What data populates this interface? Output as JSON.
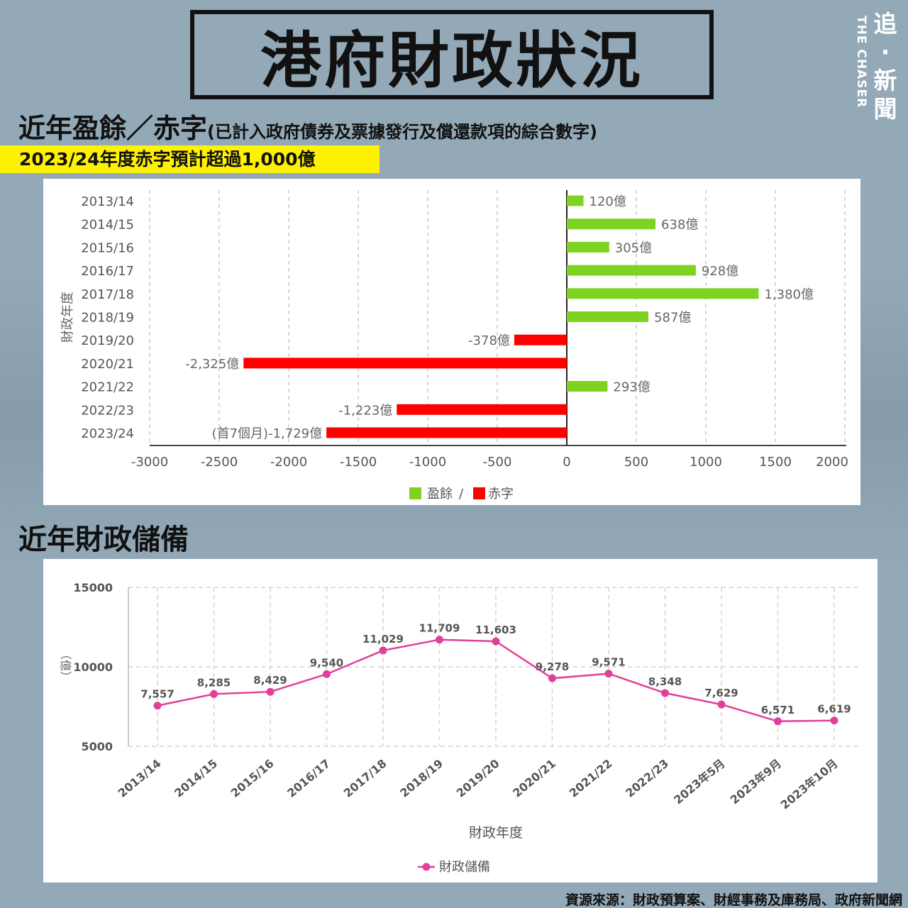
{
  "header": {
    "title": "港府財政狀況",
    "logo_cn": "追·新聞",
    "logo_en": "THE CHASER"
  },
  "section1": {
    "title": "近年盈餘／赤字",
    "subtitle": "(已計入政府債券及票據發行及償還款項的綜合數字)",
    "highlight": "2023/24年度赤字預計超過1,000億"
  },
  "section2": {
    "title": "近年財政儲備"
  },
  "footer": {
    "source": "資源來源：財政預算案、財經事務及庫務局、政府新聞網"
  },
  "colors": {
    "surplus": "#7ed321",
    "deficit": "#ff0000",
    "reserve_line": "#e0409a",
    "background": "#93a9b7",
    "highlight": "#fff200"
  },
  "chart_data": [
    {
      "type": "bar",
      "orientation": "horizontal",
      "ylabel": "財政年度",
      "categories": [
        "2013/14",
        "2014/15",
        "2015/16",
        "2016/17",
        "2017/18",
        "2018/19",
        "2019/20",
        "2020/21",
        "2021/22",
        "2022/23",
        "2023/24"
      ],
      "values": [
        120,
        638,
        305,
        928,
        1380,
        587,
        -378,
        -2325,
        293,
        -1223,
        -1729
      ],
      "data_labels": [
        "120億",
        "638億",
        "305億",
        "928億",
        "1,380億",
        "587億",
        "-378億",
        "-2,325億",
        "293億",
        "-1,223億",
        "(首7個月)-1,729億"
      ],
      "xlim": [
        -3000,
        2000
      ],
      "xticks": [
        -3000,
        -2500,
        -2000,
        -1500,
        -1000,
        -500,
        0,
        500,
        1000,
        1500,
        2000
      ],
      "grid": true,
      "legend": [
        {
          "name": "盈餘",
          "color": "#7ed321"
        },
        {
          "name": "赤字",
          "color": "#ff0000"
        }
      ],
      "legend_separator": "/",
      "legend_position": "bottom"
    },
    {
      "type": "line",
      "xlabel": "財政年度",
      "ylabel": "（億）",
      "categories": [
        "2013/14",
        "2014/15",
        "2015/16",
        "2016/17",
        "2017/18",
        "2018/19",
        "2019/20",
        "2020/21",
        "2021/22",
        "2022/23",
        "2023年5月",
        "2023年9月",
        "2023年10月"
      ],
      "series": [
        {
          "name": "財政儲備",
          "values": [
            7557,
            8285,
            8429,
            9540,
            11029,
            11709,
            11603,
            9278,
            9571,
            8348,
            7629,
            6571,
            6619
          ]
        }
      ],
      "data_labels": [
        "7,557",
        "8,285",
        "8,429",
        "9,540",
        "11,029",
        "11,709",
        "11,603",
        "9,278",
        "9,571",
        "8,348",
        "7,629",
        "6,571",
        "6,619"
      ],
      "ylim": [
        5000,
        15000
      ],
      "yticks": [
        5000,
        10000,
        15000
      ],
      "grid": true,
      "legend_position": "bottom"
    }
  ]
}
